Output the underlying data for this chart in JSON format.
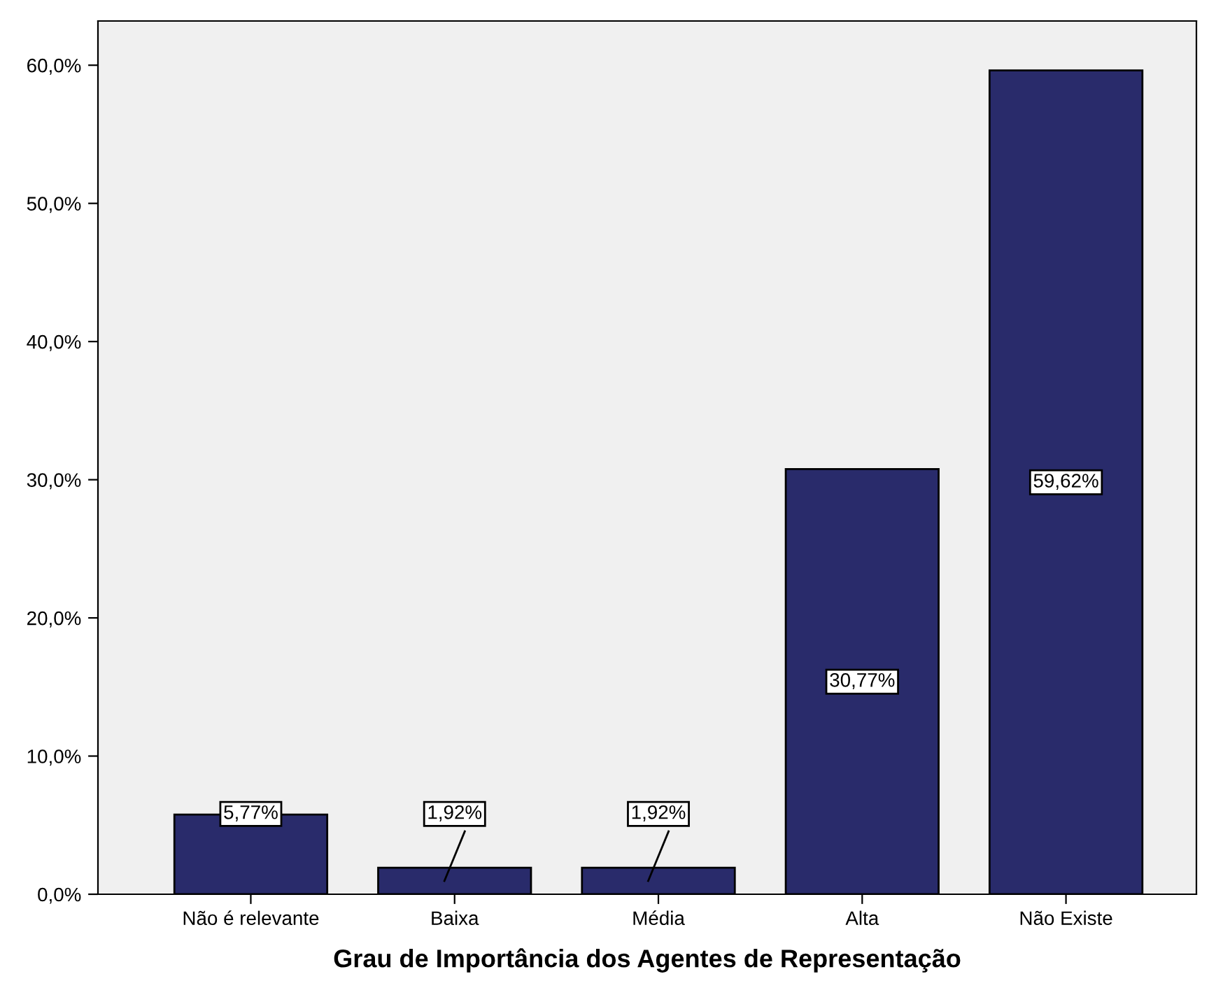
{
  "chart_data": {
    "type": "bar",
    "xlabel": "Grau de Importância dos Agentes de Representação",
    "categories": [
      "Não é relevante",
      "Baixa",
      "Média",
      "Alta",
      "Não Existe"
    ],
    "values": [
      5.77,
      1.92,
      1.92,
      30.77,
      59.62
    ],
    "value_labels": [
      "5,77%",
      "1,92%",
      "1,92%",
      "30,77%",
      "59,62%"
    ],
    "color": "#292b6b",
    "ylim": [
      0,
      63.2
    ],
    "yticks": [
      {
        "value": 0,
        "label": "0,0%"
      },
      {
        "value": 10,
        "label": "10,0%"
      },
      {
        "value": 20,
        "label": "20,0%"
      },
      {
        "value": 30,
        "label": "30,0%"
      },
      {
        "value": 40,
        "label": "40,0%"
      },
      {
        "value": 50,
        "label": "50,0%"
      },
      {
        "value": 60,
        "label": "60,0%"
      }
    ],
    "grid": false,
    "legend": false
  }
}
